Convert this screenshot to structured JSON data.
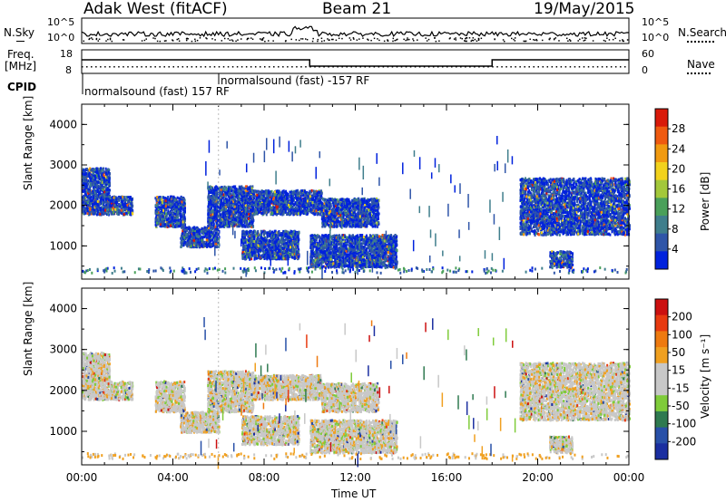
{
  "header": {
    "station": "Adak West (fitACF)",
    "beam": "Beam 21",
    "date": "19/May/2015"
  },
  "top_panel": {
    "left_label": "N.Sky",
    "left_ticks": [
      "10^5",
      "10^0"
    ],
    "right_ticks": [
      "10^5",
      "10^0"
    ],
    "right_label": "N.Search"
  },
  "freq_panel": {
    "left_label_1": "Freq.",
    "left_label_2": "[MHz]",
    "left_ticks": [
      "18",
      "8"
    ],
    "right_ticks": [
      "60",
      "0"
    ],
    "right_label": "Nave",
    "cpid_label": "CPID",
    "cpid_1": "normalsound (fast) 157 RF",
    "cpid_2": "normalsound (fast) -157 RF"
  },
  "colors": {
    "power_scale": [
      "#0022dd",
      "#2f55a8",
      "#3f7e8c",
      "#4aa05a",
      "#a3c83a",
      "#f2d21c",
      "#f19a10",
      "#ef5a10",
      "#d91a0a"
    ],
    "velocity_scale": [
      "#1a2ea0",
      "#2850a8",
      "#2f7a50",
      "#7fcc3a",
      "#c8c8c8",
      "#c8c8c8",
      "#f0a020",
      "#ee7a10",
      "#e83a10",
      "#cc1010"
    ]
  },
  "chart_data": [
    {
      "type": "heatmap",
      "title": "Power",
      "ylabel": "Slant Range [km]",
      "ylim": [
        180,
        4500
      ],
      "yticks": [
        "1000",
        "2000",
        "3000",
        "4000"
      ],
      "xlabel": "Time UT",
      "xlim": [
        "00:00",
        "24:00"
      ],
      "colorbar_label": "Power [dB]",
      "colorbar_ticks": [
        "4",
        "8",
        "12",
        "16",
        "20",
        "24",
        "28"
      ],
      "scatter_regions_ut_hours_km": [
        {
          "t": [
            0.0,
            1.2
          ],
          "r": [
            1800,
            2950
          ]
        },
        {
          "t": [
            1.2,
            2.2
          ],
          "r": [
            1800,
            2250
          ]
        },
        {
          "t": [
            3.2,
            4.5
          ],
          "r": [
            1500,
            2250
          ]
        },
        {
          "t": [
            4.3,
            6.0
          ],
          "r": [
            1000,
            1500
          ]
        },
        {
          "t": [
            5.5,
            7.5
          ],
          "r": [
            1500,
            2500
          ]
        },
        {
          "t": [
            7.0,
            9.5
          ],
          "r": [
            700,
            1400
          ]
        },
        {
          "t": [
            7.5,
            10.5
          ],
          "r": [
            1800,
            2400
          ]
        },
        {
          "t": [
            10.0,
            13.8
          ],
          "r": [
            500,
            1300
          ]
        },
        {
          "t": [
            10.5,
            13.0
          ],
          "r": [
            1500,
            2200
          ]
        },
        {
          "t": [
            19.2,
            24.0
          ],
          "r": [
            1300,
            2700
          ]
        },
        {
          "t": [
            20.5,
            21.5
          ],
          "r": [
            500,
            900
          ]
        }
      ]
    },
    {
      "type": "heatmap",
      "title": "Velocity",
      "ylabel": "Slant Range [km]",
      "ylim": [
        180,
        4500
      ],
      "yticks": [
        "1000",
        "2000",
        "3000",
        "4000"
      ],
      "xlabel": "Time UT",
      "xlim": [
        "00:00",
        "24:00"
      ],
      "xticks": [
        "00:00",
        "04:00",
        "08:00",
        "12:00",
        "16:00",
        "20:00",
        "00:00"
      ],
      "colorbar_label": "Velocity [m s⁻¹]",
      "colorbar_ticks": [
        "200",
        "100",
        "50",
        "15",
        "-15",
        "-50",
        "-100",
        "-200"
      ]
    }
  ]
}
